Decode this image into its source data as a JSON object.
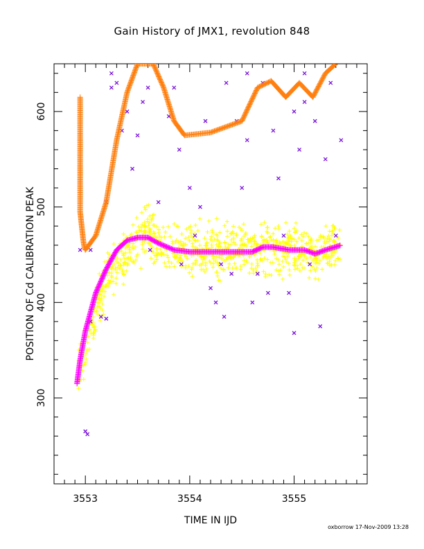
{
  "chart_data": {
    "type": "scatter",
    "title": "Gain History of JMX1, revolution 848",
    "xlabel": "TIME IN IJD",
    "ylabel": "POSITION OF Cd CALIBRATION PEAK",
    "xlim": [
      3552.7,
      3555.7
    ],
    "ylim": [
      210,
      650
    ],
    "xticks": [
      3553,
      3554,
      3555
    ],
    "yticks": [
      300,
      400,
      500,
      600
    ],
    "grid": false,
    "series": [
      {
        "marker": "cross",
        "color": "#ffff00",
        "mean": [
          [
            3552.93,
            330
          ],
          [
            3553.0,
            350
          ],
          [
            3553.1,
            390
          ],
          [
            3553.2,
            425
          ],
          [
            3553.3,
            440
          ],
          [
            3553.45,
            455
          ],
          [
            3553.6,
            475
          ],
          [
            3553.7,
            460
          ],
          [
            3553.8,
            455
          ],
          [
            3554.0,
            455
          ],
          [
            3554.3,
            455
          ],
          [
            3554.6,
            456
          ],
          [
            3554.9,
            455
          ],
          [
            3555.2,
            452
          ],
          [
            3555.45,
            458
          ]
        ],
        "spread": 18
      },
      {
        "marker": "x",
        "color": "#7a14d8",
        "points": [
          [
            3552.95,
            455
          ],
          [
            3553.05,
            455
          ],
          [
            3553.2,
            505
          ],
          [
            3553.25,
            640
          ],
          [
            3553.3,
            630
          ],
          [
            3553.35,
            580
          ],
          [
            3553.4,
            600
          ],
          [
            3553.45,
            540
          ],
          [
            3553.5,
            575
          ],
          [
            3553.55,
            610
          ],
          [
            3553.6,
            625
          ],
          [
            3553.62,
            455
          ],
          [
            3553.7,
            505
          ],
          [
            3553.8,
            595
          ],
          [
            3553.85,
            625
          ],
          [
            3553.9,
            560
          ],
          [
            3553.92,
            440
          ],
          [
            3554.0,
            520
          ],
          [
            3554.05,
            470
          ],
          [
            3554.1,
            500
          ],
          [
            3554.15,
            590
          ],
          [
            3554.2,
            415
          ],
          [
            3554.25,
            400
          ],
          [
            3554.3,
            440
          ],
          [
            3554.35,
            630
          ],
          [
            3554.4,
            430
          ],
          [
            3554.45,
            590
          ],
          [
            3554.5,
            520
          ],
          [
            3554.55,
            570
          ],
          [
            3554.6,
            400
          ],
          [
            3554.65,
            430
          ],
          [
            3554.7,
            630
          ],
          [
            3554.75,
            410
          ],
          [
            3554.8,
            580
          ],
          [
            3554.85,
            530
          ],
          [
            3554.9,
            470
          ],
          [
            3554.95,
            410
          ],
          [
            3555.0,
            600
          ],
          [
            3555.05,
            560
          ],
          [
            3555.1,
            640
          ],
          [
            3555.15,
            440
          ],
          [
            3555.2,
            590
          ],
          [
            3555.25,
            375
          ],
          [
            3555.3,
            550
          ],
          [
            3555.35,
            630
          ],
          [
            3555.4,
            470
          ],
          [
            3555.45,
            570
          ],
          [
            3553.0,
            265
          ],
          [
            3553.02,
            262
          ],
          [
            3553.05,
            380
          ],
          [
            3553.15,
            385
          ],
          [
            3553.2,
            383
          ],
          [
            3553.25,
            625
          ],
          [
            3554.33,
            385
          ],
          [
            3555.0,
            368
          ],
          [
            3555.1,
            610
          ],
          [
            3554.55,
            640
          ]
        ]
      },
      {
        "marker": "cross",
        "color": "#ff7f0e",
        "points": [
          [
            3552.95,
            615
          ],
          [
            3552.95,
            575
          ],
          [
            3552.95,
            545
          ],
          [
            3552.95,
            525
          ],
          [
            3552.95,
            510
          ],
          [
            3552.95,
            495
          ],
          [
            3552.96,
            485
          ],
          [
            3552.97,
            475
          ],
          [
            3552.98,
            465
          ],
          [
            3552.99,
            458
          ],
          [
            3553.0,
            455
          ],
          [
            3553.1,
            470
          ],
          [
            3553.2,
            505
          ],
          [
            3553.3,
            570
          ],
          [
            3553.4,
            620
          ],
          [
            3553.5,
            650
          ],
          [
            3553.65,
            650
          ],
          [
            3553.75,
            625
          ],
          [
            3553.85,
            590
          ],
          [
            3553.95,
            575
          ],
          [
            3554.2,
            578
          ],
          [
            3554.5,
            590
          ],
          [
            3554.65,
            625
          ],
          [
            3554.78,
            632
          ],
          [
            3554.92,
            615
          ],
          [
            3555.05,
            630
          ],
          [
            3555.18,
            615
          ],
          [
            3555.3,
            640
          ],
          [
            3555.4,
            650
          ]
        ]
      },
      {
        "marker": "cross",
        "color": "#ff00ff",
        "points": [
          [
            3552.92,
            315
          ],
          [
            3552.95,
            340
          ],
          [
            3553.0,
            370
          ],
          [
            3553.1,
            410
          ],
          [
            3553.2,
            435
          ],
          [
            3553.3,
            455
          ],
          [
            3553.4,
            465
          ],
          [
            3553.5,
            468
          ],
          [
            3553.6,
            468
          ],
          [
            3553.7,
            462
          ],
          [
            3553.85,
            455
          ],
          [
            3554.0,
            453
          ],
          [
            3554.3,
            453
          ],
          [
            3554.6,
            453
          ],
          [
            3554.7,
            458
          ],
          [
            3554.8,
            458
          ],
          [
            3554.95,
            455
          ],
          [
            3555.1,
            455
          ],
          [
            3555.2,
            451
          ],
          [
            3555.3,
            455
          ],
          [
            3555.45,
            460
          ]
        ]
      }
    ]
  },
  "footer": {
    "credit": "oxborrow 17-Nov-2009 13:28"
  }
}
